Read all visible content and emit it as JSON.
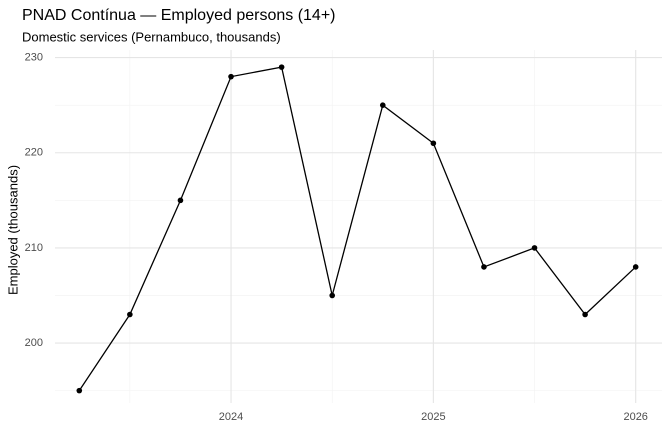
{
  "chart_data": {
    "type": "line",
    "title": "PNAD Contínua — Employed persons (14+)",
    "subtitle": "Domestic services (Pernambuco, thousands)",
    "y_label": "Employed (thousands)",
    "x": [
      2023.25,
      2023.5,
      2023.75,
      2024,
      2024.25,
      2024.5,
      2024.75,
      2025,
      2025.25,
      2025.5,
      2025.75,
      2026
    ],
    "series": [
      {
        "name": "Employed",
        "color": "#000000",
        "values": [
          195,
          203,
          215,
          228,
          229,
          205,
          225,
          221,
          208,
          210,
          203,
          208
        ]
      }
    ],
    "xlim": [
      2023.13,
      2026.13
    ],
    "xticks": [
      2024,
      2025,
      2026
    ],
    "ylim": [
      193.7,
      230.8
    ],
    "yticks": [
      200,
      210,
      220,
      230
    ],
    "grid": true
  }
}
